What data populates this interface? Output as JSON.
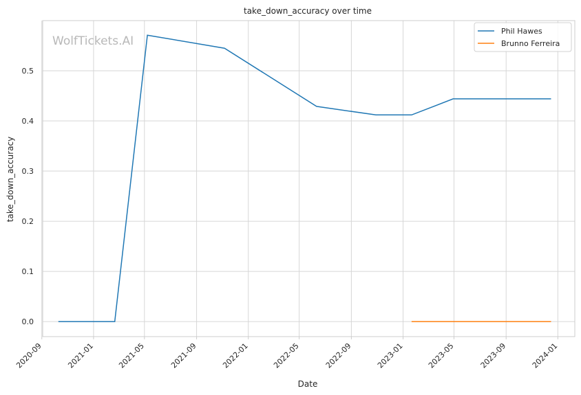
{
  "watermark": "WolfTickets.AI",
  "chart_data": {
    "type": "line",
    "title": "take_down_accuracy over time",
    "xlabel": "Date",
    "ylabel": "take_down_accuracy",
    "grid": true,
    "legend_position": "top-right",
    "xlim": [
      "2020-09-03",
      "2024-02-10"
    ],
    "ylim": [
      -0.03,
      0.6
    ],
    "x_ticks": [
      "2020-09",
      "2021-01",
      "2021-05",
      "2021-09",
      "2022-01",
      "2022-05",
      "2022-09",
      "2023-01",
      "2023-05",
      "2023-09",
      "2024-01"
    ],
    "y_ticks": [
      "0.0",
      "0.1",
      "0.2",
      "0.3",
      "0.4",
      "0.5"
    ],
    "series": [
      {
        "name": "Phil Hawes",
        "color": "#1f77b4",
        "points": [
          {
            "x": "2020-10-10",
            "y": 0.0
          },
          {
            "x": "2021-02-20",
            "y": 0.0
          },
          {
            "x": "2021-05-08",
            "y": 0.571
          },
          {
            "x": "2021-11-06",
            "y": 0.545
          },
          {
            "x": "2022-06-11",
            "y": 0.429
          },
          {
            "x": "2022-10-29",
            "y": 0.412
          },
          {
            "x": "2023-01-21",
            "y": 0.412
          },
          {
            "x": "2023-04-29",
            "y": 0.444
          },
          {
            "x": "2023-12-16",
            "y": 0.444
          }
        ]
      },
      {
        "name": "Brunno Ferreira",
        "color": "#ff7f0e",
        "points": [
          {
            "x": "2023-01-21",
            "y": 0.0
          },
          {
            "x": "2023-12-16",
            "y": 0.0
          }
        ]
      }
    ]
  }
}
